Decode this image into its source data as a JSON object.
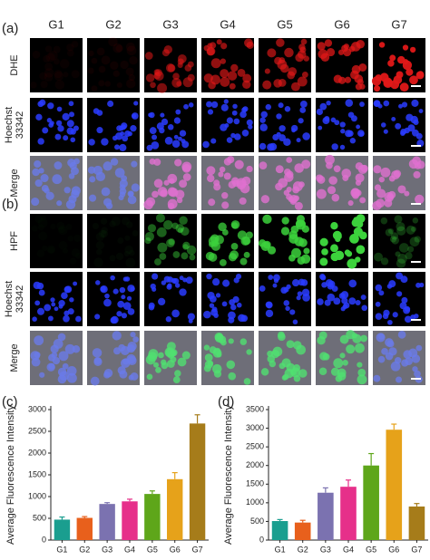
{
  "panels": {
    "columns": [
      "G1",
      "G2",
      "G3",
      "G4",
      "G5",
      "G6",
      "G7"
    ],
    "groups": [
      {
        "tag": "(a)",
        "rows": [
          {
            "label": [
              "DHE"
            ]
          },
          {
            "label": [
              "Hoechst",
              "33342"
            ]
          },
          {
            "label": [
              "Merge"
            ]
          }
        ]
      },
      {
        "tag": "(b)",
        "rows": [
          {
            "label": [
              "HPF"
            ]
          },
          {
            "label": [
              "Hoechst",
              "33342"
            ]
          },
          {
            "label": [
              "Merge"
            ]
          }
        ]
      }
    ]
  },
  "chart_data": [
    {
      "type": "bar",
      "tag": "(c)",
      "ylabel": "Average Fluorescence Intensity",
      "categories": [
        "G1",
        "G2",
        "G3",
        "G4",
        "G5",
        "G6",
        "G7"
      ],
      "values": [
        470,
        510,
        830,
        890,
        1060,
        1400,
        2680
      ],
      "errors": [
        60,
        30,
        30,
        50,
        70,
        150,
        200
      ],
      "colors": [
        "#1a9e8f",
        "#e8601c",
        "#7b72b0",
        "#e6308a",
        "#5ea61a",
        "#e6a21a",
        "#a67c1a"
      ],
      "ylim": [
        0,
        3000
      ],
      "yticks": [
        0,
        500,
        1000,
        1500,
        2000,
        2500,
        3000
      ]
    },
    {
      "type": "bar",
      "tag": "(d)",
      "ylabel": "Average Fluorescence Intensity",
      "categories": [
        "G1",
        "G2",
        "G3",
        "G4",
        "G5",
        "G6",
        "G7"
      ],
      "values": [
        510,
        470,
        1270,
        1430,
        2000,
        2960,
        900
      ],
      "errors": [
        40,
        60,
        130,
        180,
        320,
        150,
        80
      ],
      "colors": [
        "#1a9e8f",
        "#e8601c",
        "#7b72b0",
        "#e6308a",
        "#5ea61a",
        "#e6a21a",
        "#a67c1a"
      ],
      "ylim": [
        0,
        3500
      ],
      "yticks": [
        0,
        500,
        1000,
        1500,
        2000,
        2500,
        3000,
        3500
      ]
    }
  ]
}
